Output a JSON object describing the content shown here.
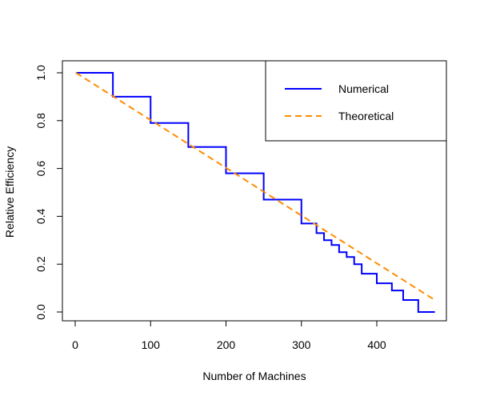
{
  "chart_data": {
    "type": "line",
    "title": "",
    "xlabel": "Number of Machines",
    "ylabel": "Relative Efficiency",
    "xlim": [
      0,
      480
    ],
    "ylim": [
      0,
      1.0
    ],
    "xticks": [
      0,
      100,
      200,
      300,
      400
    ],
    "yticks": [
      0.0,
      0.2,
      0.4,
      0.6,
      0.8,
      1.0
    ],
    "xtick_labels": [
      "0",
      "100",
      "200",
      "300",
      "400"
    ],
    "ytick_labels": [
      "0.0",
      "0.2",
      "0.4",
      "0.6",
      "0.8",
      "1.0"
    ],
    "grid": false,
    "legend_position": "top-right",
    "series": [
      {
        "name": "Numerical",
        "style": "step",
        "color": "#0000ff",
        "x": [
          1,
          50,
          100,
          150,
          200,
          250,
          300,
          320,
          330,
          340,
          350,
          360,
          370,
          380,
          385,
          400,
          410,
          420,
          435,
          455,
          477
        ],
        "y": [
          1.0,
          0.9,
          0.79,
          0.69,
          0.58,
          0.47,
          0.37,
          0.33,
          0.3,
          0.28,
          0.25,
          0.23,
          0.2,
          0.16,
          0.16,
          0.12,
          0.12,
          0.09,
          0.05,
          0.0,
          0.0
        ]
      },
      {
        "name": "Theoretical",
        "style": "dashed",
        "color": "#ff8c00",
        "x": [
          1,
          477
        ],
        "y": [
          1.0,
          0.05
        ]
      }
    ]
  }
}
